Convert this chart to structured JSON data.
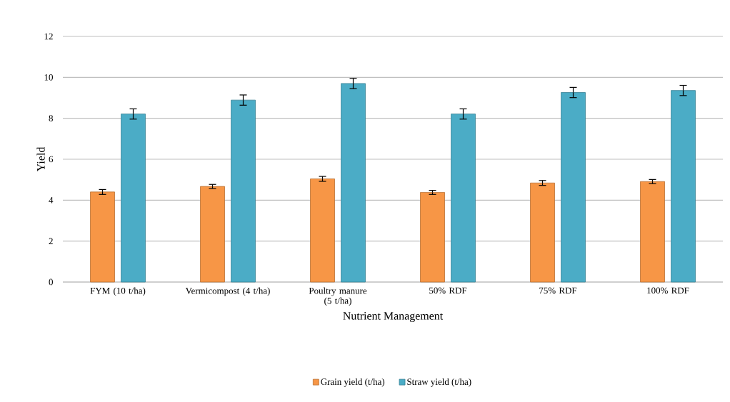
{
  "chart_data": {
    "type": "bar",
    "xlabel": "Nutrient Management",
    "ylabel": "Yield",
    "categories": [
      "FYM (10 t/ha)",
      "Vermicompost (4 t/ha)",
      "Poultry manure (5 t/ha)",
      "50% RDF",
      "75% RDF",
      "100% RDF"
    ],
    "series": [
      {
        "name": "Grain yield (t/ha)",
        "color": "#f79646",
        "values": [
          4.4,
          4.67,
          5.04,
          4.38,
          4.84,
          4.91
        ],
        "errors": [
          0.12,
          0.1,
          0.12,
          0.1,
          0.12,
          0.1
        ]
      },
      {
        "name": "Straw yield (t/ha)",
        "color": "#4bacc6",
        "values": [
          8.21,
          8.89,
          9.7,
          8.21,
          9.26,
          9.36
        ],
        "errors": [
          0.25,
          0.25,
          0.25,
          0.25,
          0.25,
          0.25
        ]
      }
    ],
    "ylim": [
      0,
      12
    ],
    "yticks": [
      0,
      2,
      4,
      6,
      8,
      10,
      12
    ],
    "grid": "y",
    "legend": "bottom"
  }
}
